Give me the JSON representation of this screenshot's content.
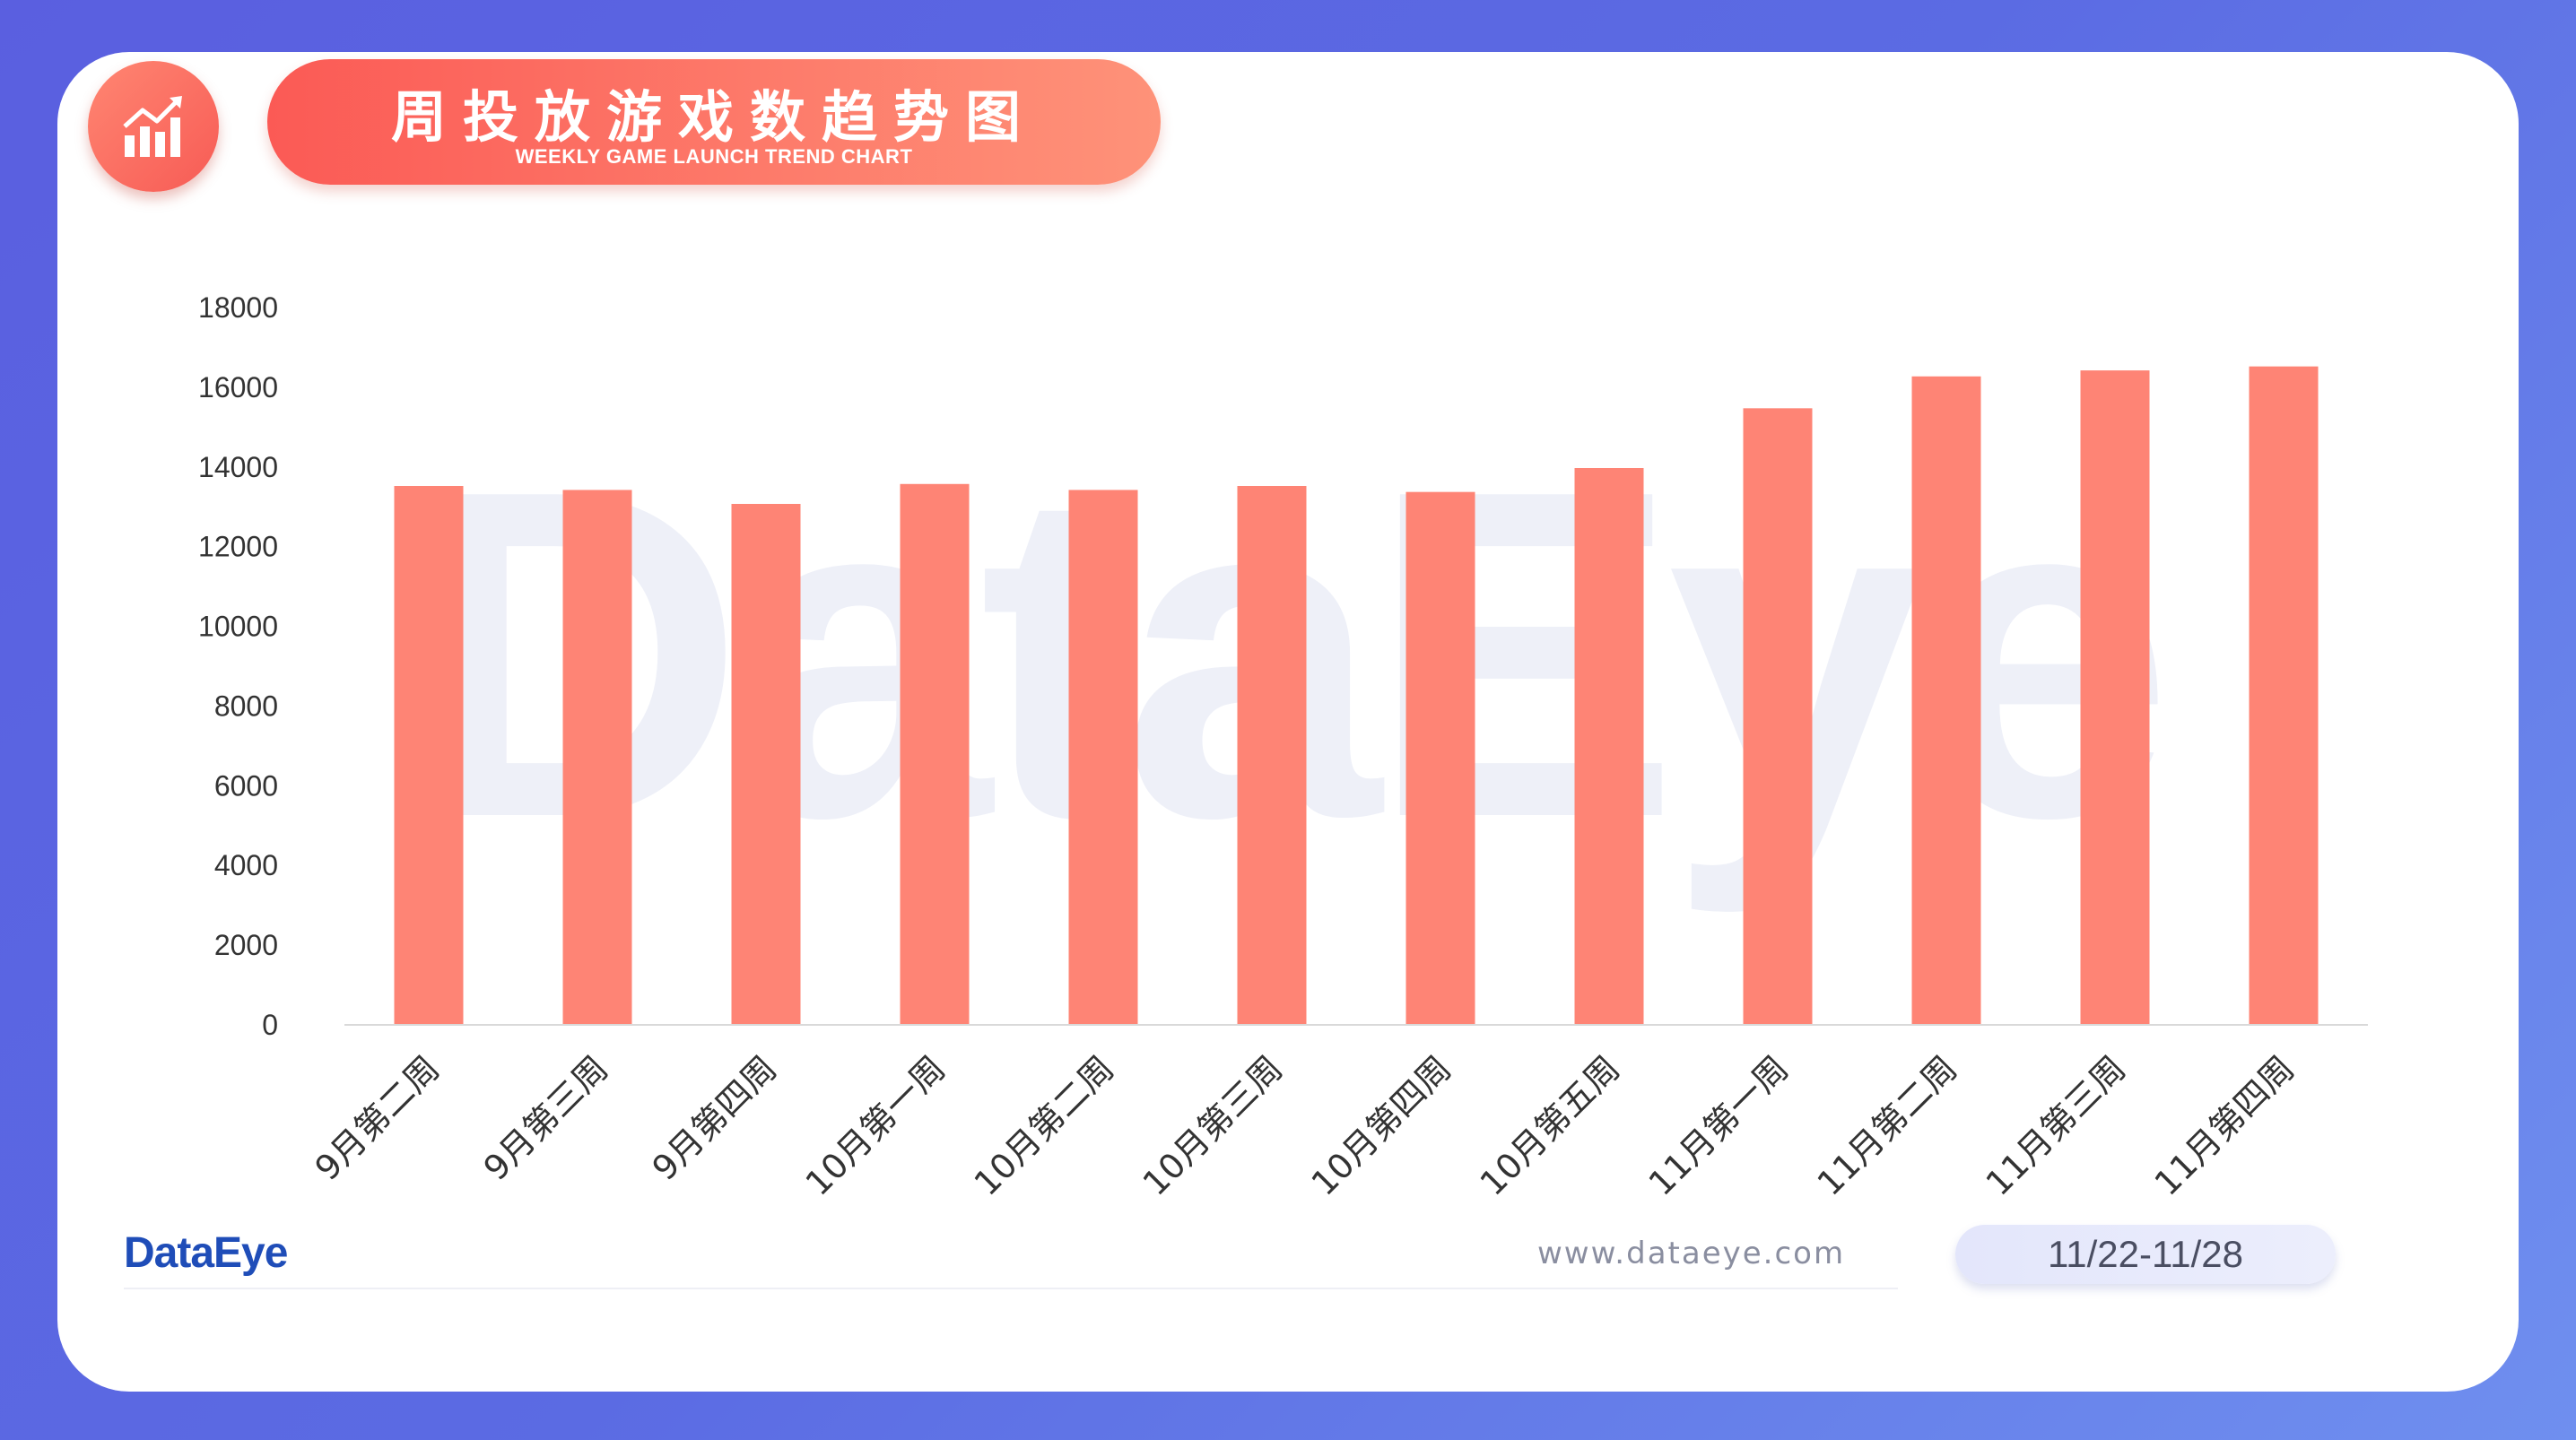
{
  "header": {
    "title": "周投放游戏数趋势图",
    "subtitle": "WEEKLY GAME LAUNCH TREND CHART",
    "icon": "bar-chart-trend-icon"
  },
  "watermark": "DataEye",
  "footer": {
    "logo": "DataEye",
    "url": "www.dataeye.com",
    "date_range": "11/22-11/28"
  },
  "colors": {
    "bar": "#fe8475",
    "accent": "#fb5a55",
    "background": "#5b6be3"
  },
  "chart_data": {
    "type": "bar",
    "title": "周投放游戏数趋势图",
    "categories": [
      "9月第二周",
      "9月第三周",
      "9月第四周",
      "10月第一周",
      "10月第二周",
      "10月第三周",
      "10月第四周",
      "10月第五周",
      "11月第一周",
      "11月第二周",
      "11月第三周",
      "11月第四周"
    ],
    "values": [
      13500,
      13400,
      13050,
      13550,
      13400,
      13500,
      13350,
      13950,
      15450,
      16250,
      16400,
      16500
    ],
    "ylim": [
      0,
      18000
    ],
    "yticks": [
      0,
      2000,
      4000,
      6000,
      8000,
      10000,
      12000,
      14000,
      16000,
      18000
    ],
    "xlabel": "",
    "ylabel": "",
    "grid": false,
    "legend": "none"
  }
}
